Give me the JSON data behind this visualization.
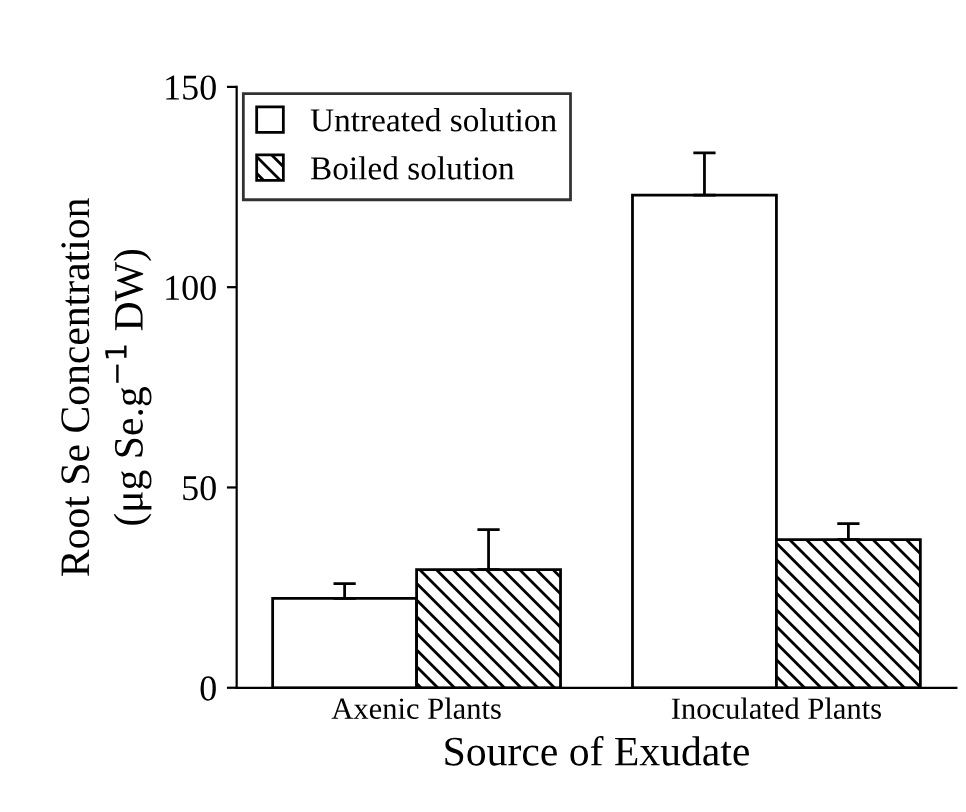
{
  "chart_data": {
    "type": "bar",
    "xlabel": "Source of Exudate",
    "ylabel": "Root Se Concentration\n(μg Se.g$^{−1}$ DW)",
    "categories": [
      "Axenic Plants",
      "Inoculated Plants"
    ],
    "series": [
      {
        "name": "Untreated solution",
        "color": "#ffffff",
        "values": [
          22.3,
          123
        ],
        "errors": [
          [
            22.3,
            26
          ],
          [
            123,
            133.5
          ]
        ]
      },
      {
        "name": "Boiled solution",
        "color": "#000000",
        "values": [
          29.5,
          37
        ],
        "errors": [
          [
            29.5,
            39.5
          ],
          [
            37,
            41
          ]
        ]
      }
    ],
    "ylim": [
      0,
      150
    ],
    "yticks": [
      0,
      50,
      100,
      150
    ],
    "grid": false,
    "legend": "top left"
  }
}
